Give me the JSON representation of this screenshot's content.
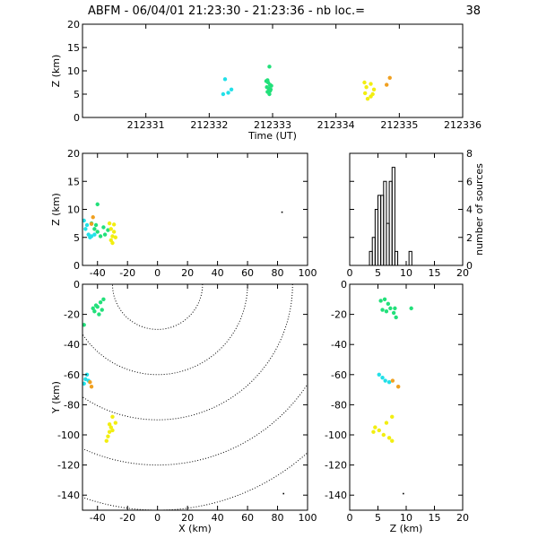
{
  "title": {
    "text": "ABFM - 06/04/01 21:23:30 - 21:23:36 - nb loc.=",
    "count": "38"
  },
  "chart_data": [
    {
      "id": "time-height",
      "type": "scatter",
      "xlabel": "Time (UT)",
      "ylabel": "Z (km)",
      "xlim": [
        212330,
        212336
      ],
      "ylim": [
        0,
        20
      ],
      "xticks": [
        "212331",
        "212332",
        "212333",
        "212334",
        "212335",
        "212336"
      ],
      "yticks": [
        "0",
        "5",
        "10",
        "15",
        "20"
      ],
      "points": [
        {
          "x": 212332.25,
          "y": 8.2,
          "c": "cyan"
        },
        {
          "x": 212332.3,
          "y": 5.3,
          "c": "cyan"
        },
        {
          "x": 212332.35,
          "y": 6.0,
          "c": "cyan"
        },
        {
          "x": 212332.22,
          "y": 5.0,
          "c": "cyan"
        },
        {
          "x": 212332.95,
          "y": 10.9,
          "c": "green"
        },
        {
          "x": 212332.92,
          "y": 8.0,
          "c": "green"
        },
        {
          "x": 212332.93,
          "y": 7.5,
          "c": "green"
        },
        {
          "x": 212332.96,
          "y": 7.0,
          "c": "green"
        },
        {
          "x": 212332.91,
          "y": 6.5,
          "c": "green"
        },
        {
          "x": 212332.97,
          "y": 6.0,
          "c": "green"
        },
        {
          "x": 212332.92,
          "y": 5.5,
          "c": "green"
        },
        {
          "x": 212332.95,
          "y": 5.0,
          "c": "green"
        },
        {
          "x": 212332.9,
          "y": 7.8,
          "c": "green"
        },
        {
          "x": 212332.98,
          "y": 6.8,
          "c": "green"
        },
        {
          "x": 212332.94,
          "y": 6.2,
          "c": "green"
        },
        {
          "x": 212332.96,
          "y": 5.7,
          "c": "green"
        },
        {
          "x": 212334.45,
          "y": 7.5,
          "c": "yellow"
        },
        {
          "x": 212334.55,
          "y": 7.2,
          "c": "yellow"
        },
        {
          "x": 212334.48,
          "y": 6.5,
          "c": "yellow"
        },
        {
          "x": 212334.6,
          "y": 6.0,
          "c": "yellow"
        },
        {
          "x": 212334.46,
          "y": 5.2,
          "c": "yellow"
        },
        {
          "x": 212334.55,
          "y": 4.5,
          "c": "yellow"
        },
        {
          "x": 212334.5,
          "y": 4.0,
          "c": "yellow"
        },
        {
          "x": 212334.58,
          "y": 5.0,
          "c": "yellow"
        },
        {
          "x": 212334.85,
          "y": 8.5,
          "c": "orange"
        },
        {
          "x": 212334.8,
          "y": 7.0,
          "c": "orange"
        }
      ]
    },
    {
      "id": "x-z",
      "type": "scatter",
      "xlabel": "",
      "ylabel": "Z (km)",
      "xlim": [
        -50,
        100
      ],
      "ylim": [
        0,
        20
      ],
      "xticks": [
        "-40",
        "-20",
        "0",
        "20",
        "40",
        "60",
        "80",
        "100"
      ],
      "yticks": [
        "0",
        "5",
        "10",
        "15",
        "20"
      ],
      "points": [
        {
          "x": -49,
          "y": 8.0,
          "c": "cyan"
        },
        {
          "x": -47,
          "y": 7.2,
          "c": "cyan"
        },
        {
          "x": -48,
          "y": 6.5,
          "c": "cyan"
        },
        {
          "x": -46,
          "y": 5.5,
          "c": "cyan"
        },
        {
          "x": -44,
          "y": 5.2,
          "c": "cyan"
        },
        {
          "x": -42,
          "y": 5.5,
          "c": "cyan"
        },
        {
          "x": -45,
          "y": 5.0,
          "c": "cyan"
        },
        {
          "x": -40,
          "y": 10.9,
          "c": "green"
        },
        {
          "x": -44,
          "y": 7.5,
          "c": "green"
        },
        {
          "x": -42,
          "y": 6.5,
          "c": "green"
        },
        {
          "x": -40,
          "y": 6.0,
          "c": "green"
        },
        {
          "x": -38,
          "y": 5.2,
          "c": "green"
        },
        {
          "x": -36,
          "y": 6.8,
          "c": "green"
        },
        {
          "x": -35,
          "y": 5.5,
          "c": "green"
        },
        {
          "x": -33,
          "y": 6.3,
          "c": "green"
        },
        {
          "x": -41,
          "y": 7.2,
          "c": "green"
        },
        {
          "x": -43,
          "y": 8.6,
          "c": "orange"
        },
        {
          "x": -44,
          "y": 7.4,
          "c": "orange"
        },
        {
          "x": -32,
          "y": 7.5,
          "c": "yellow"
        },
        {
          "x": -29,
          "y": 7.3,
          "c": "yellow"
        },
        {
          "x": -31,
          "y": 6.5,
          "c": "yellow"
        },
        {
          "x": -29,
          "y": 6.0,
          "c": "yellow"
        },
        {
          "x": -30,
          "y": 5.2,
          "c": "yellow"
        },
        {
          "x": -31,
          "y": 4.5,
          "c": "yellow"
        },
        {
          "x": -30,
          "y": 4.0,
          "c": "yellow"
        },
        {
          "x": -28,
          "y": 5.0,
          "c": "yellow"
        },
        {
          "x": 83,
          "y": 9.5,
          "c": "black"
        }
      ]
    },
    {
      "id": "histogram",
      "type": "bar",
      "ylabel": "number of sources",
      "xlim": [
        0,
        20
      ],
      "ylim": [
        0,
        8
      ],
      "xticks": [
        "0",
        "5",
        "10",
        "15",
        "20"
      ],
      "yticks": [
        "0",
        "2",
        "4",
        "6",
        "8"
      ],
      "bin_width": 0.5,
      "bins": [
        {
          "x": 3.5,
          "count": 1
        },
        {
          "x": 4.0,
          "count": 2
        },
        {
          "x": 4.5,
          "count": 4
        },
        {
          "x": 5.0,
          "count": 5
        },
        {
          "x": 5.5,
          "count": 5
        },
        {
          "x": 6.0,
          "count": 6
        },
        {
          "x": 6.5,
          "count": 3
        },
        {
          "x": 7.0,
          "count": 6
        },
        {
          "x": 7.5,
          "count": 7
        },
        {
          "x": 8.0,
          "count": 1
        },
        {
          "x": 10.5,
          "count": 1
        }
      ]
    },
    {
      "id": "x-y",
      "type": "scatter",
      "xlabel": "X (km)",
      "ylabel": "Y (km)",
      "xlim": [
        -50,
        100
      ],
      "ylim": [
        -150,
        0
      ],
      "xticks": [
        "-40",
        "-20",
        "0",
        "20",
        "40",
        "60",
        "80",
        "100"
      ],
      "yticks": [
        "0",
        "-20",
        "-40",
        "-60",
        "-80",
        "-100",
        "-120",
        "-140"
      ],
      "range_rings_km": [
        30,
        60,
        90,
        120,
        150
      ],
      "points": [
        {
          "x": -36,
          "y": -10,
          "c": "green"
        },
        {
          "x": -38,
          "y": -12,
          "c": "green"
        },
        {
          "x": -40,
          "y": -15,
          "c": "green"
        },
        {
          "x": -42,
          "y": -18,
          "c": "green"
        },
        {
          "x": -39,
          "y": -20,
          "c": "green"
        },
        {
          "x": -43,
          "y": -16,
          "c": "green"
        },
        {
          "x": -41,
          "y": -14,
          "c": "green"
        },
        {
          "x": -37,
          "y": -17,
          "c": "green"
        },
        {
          "x": -49,
          "y": -27,
          "c": "green"
        },
        {
          "x": -47,
          "y": -60,
          "c": "cyan"
        },
        {
          "x": -48,
          "y": -63,
          "c": "cyan"
        },
        {
          "x": -49,
          "y": -66,
          "c": "cyan"
        },
        {
          "x": -46,
          "y": -64,
          "c": "cyan"
        },
        {
          "x": -44,
          "y": -68,
          "c": "orange"
        },
        {
          "x": -45,
          "y": -65,
          "c": "orange"
        },
        {
          "x": -30,
          "y": -88,
          "c": "yellow"
        },
        {
          "x": -28,
          "y": -92,
          "c": "yellow"
        },
        {
          "x": -31,
          "y": -95,
          "c": "yellow"
        },
        {
          "x": -32,
          "y": -98,
          "c": "yellow"
        },
        {
          "x": -33,
          "y": -101,
          "c": "yellow"
        },
        {
          "x": -34,
          "y": -104,
          "c": "yellow"
        },
        {
          "x": -30,
          "y": -97,
          "c": "yellow"
        },
        {
          "x": -32,
          "y": -93,
          "c": "yellow"
        },
        {
          "x": 84,
          "y": -139,
          "c": "black"
        }
      ]
    },
    {
      "id": "z-y",
      "type": "scatter",
      "xlabel": "Z (km)",
      "ylabel": "",
      "xlim": [
        0,
        20
      ],
      "ylim": [
        -150,
        0
      ],
      "xticks": [
        "0",
        "5",
        "10",
        "15",
        "20"
      ],
      "yticks": [
        "0",
        "-20",
        "-40",
        "-60",
        "-80",
        "-100",
        "-120",
        "-140"
      ],
      "points": [
        {
          "x": 5.5,
          "y": -11,
          "c": "green"
        },
        {
          "x": 6.2,
          "y": -10,
          "c": "green"
        },
        {
          "x": 6.8,
          "y": -13,
          "c": "green"
        },
        {
          "x": 5.8,
          "y": -17,
          "c": "green"
        },
        {
          "x": 6.5,
          "y": -18,
          "c": "green"
        },
        {
          "x": 7.2,
          "y": -16,
          "c": "green"
        },
        {
          "x": 7.8,
          "y": -19,
          "c": "green"
        },
        {
          "x": 8.2,
          "y": -22,
          "c": "green"
        },
        {
          "x": 8.0,
          "y": -16,
          "c": "green"
        },
        {
          "x": 10.9,
          "y": -16,
          "c": "green"
        },
        {
          "x": 5.2,
          "y": -60,
          "c": "cyan"
        },
        {
          "x": 5.8,
          "y": -62,
          "c": "cyan"
        },
        {
          "x": 6.3,
          "y": -64,
          "c": "cyan"
        },
        {
          "x": 7.0,
          "y": -65,
          "c": "cyan"
        },
        {
          "x": 7.6,
          "y": -64,
          "c": "orange"
        },
        {
          "x": 8.6,
          "y": -68,
          "c": "orange"
        },
        {
          "x": 7.5,
          "y": -88,
          "c": "yellow"
        },
        {
          "x": 6.5,
          "y": -92,
          "c": "yellow"
        },
        {
          "x": 4.5,
          "y": -95,
          "c": "yellow"
        },
        {
          "x": 4.2,
          "y": -98,
          "c": "yellow"
        },
        {
          "x": 5.2,
          "y": -97,
          "c": "yellow"
        },
        {
          "x": 6.0,
          "y": -100,
          "c": "yellow"
        },
        {
          "x": 7.0,
          "y": -102,
          "c": "yellow"
        },
        {
          "x": 7.5,
          "y": -104,
          "c": "yellow"
        },
        {
          "x": 9.5,
          "y": -139,
          "c": "black"
        }
      ]
    }
  ],
  "colors": {
    "cyan": "#22e0e8",
    "green": "#22e07a",
    "yellow": "#f2ee10",
    "orange": "#f0a020",
    "black": "#000000",
    "axis": "#000000"
  }
}
